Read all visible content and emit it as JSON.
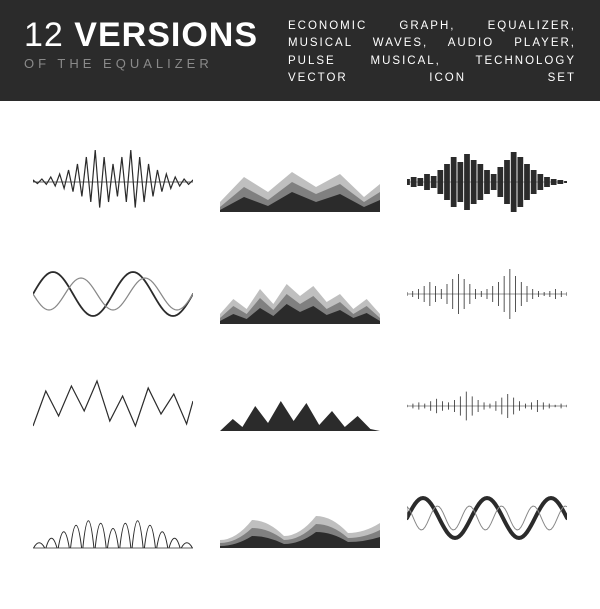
{
  "header": {
    "title_number": "12",
    "title_word": "VERSIONS",
    "subtitle": "OF THE EQUALIZER",
    "description": "ECONOMIC GRAPH, EQUALIZER, MUSICAL WAVES, AUDIO PLAYER, PULSE MUSICAL, TECHNOLOGY VECTOR ICON SET"
  },
  "colors": {
    "bg_header": "#2b2b2b",
    "text_light": "#ffffff",
    "text_muted": "#8a8a8a",
    "stroke_dark": "#2b2b2b",
    "fill_dark": "#2b2b2b",
    "fill_mid": "#808080",
    "fill_light": "#bfbfbf",
    "stroke_mid": "#888888"
  },
  "waves": [
    {
      "id": "w1",
      "type": "symmetric-spikes-outline",
      "stroke": "#2b2b2b",
      "stroke_width": 1.2,
      "amplitudes": [
        2,
        3,
        5,
        8,
        12,
        18,
        25,
        32,
        25,
        18,
        25,
        32,
        25,
        18,
        12,
        8,
        5,
        3,
        2
      ]
    },
    {
      "id": "w2",
      "type": "stacked-area",
      "layers": [
        {
          "fill": "#bfbfbf",
          "points": [
            0,
            10,
            15,
            35,
            30,
            20,
            45,
            40,
            60,
            25,
            75,
            38,
            90,
            15,
            100,
            28
          ]
        },
        {
          "fill": "#808080",
          "points": [
            0,
            5,
            15,
            25,
            30,
            12,
            45,
            30,
            60,
            18,
            75,
            28,
            90,
            10,
            100,
            20
          ]
        },
        {
          "fill": "#2b2b2b",
          "points": [
            0,
            2,
            15,
            15,
            30,
            6,
            45,
            20,
            60,
            10,
            75,
            18,
            90,
            5,
            100,
            12
          ]
        }
      ]
    },
    {
      "id": "w3",
      "type": "dense-waveform",
      "fill": "#2b2b2b",
      "amplitudes": [
        3,
        5,
        4,
        8,
        6,
        12,
        18,
        25,
        20,
        28,
        22,
        18,
        12,
        8,
        15,
        22,
        30,
        25,
        18,
        12,
        8,
        5,
        3,
        2,
        1
      ]
    },
    {
      "id": "w4",
      "type": "dual-sine",
      "lines": [
        {
          "stroke": "#2b2b2b",
          "stroke_width": 1.8,
          "amp": 22,
          "freq": 2,
          "phase": 0
        },
        {
          "stroke": "#888888",
          "stroke_width": 1.2,
          "amp": 16,
          "freq": 2.5,
          "phase": 0.5
        }
      ]
    },
    {
      "id": "w5",
      "type": "layered-jagged-area",
      "layers": [
        {
          "fill": "#bfbfbf",
          "heights": [
            10,
            25,
            15,
            35,
            20,
            40,
            28,
            38,
            22,
            30,
            15,
            25,
            10
          ]
        },
        {
          "fill": "#808080",
          "heights": [
            6,
            18,
            10,
            26,
            14,
            30,
            20,
            28,
            15,
            22,
            10,
            18,
            6
          ]
        },
        {
          "fill": "#2b2b2b",
          "heights": [
            3,
            10,
            5,
            16,
            8,
            20,
            12,
            18,
            9,
            14,
            6,
            11,
            3
          ]
        }
      ]
    },
    {
      "id": "w6",
      "type": "thin-waveform",
      "stroke": "#2b2b2b",
      "amplitudes": [
        2,
        3,
        5,
        8,
        12,
        8,
        5,
        10,
        15,
        20,
        15,
        10,
        5,
        3,
        5,
        8,
        12,
        18,
        25,
        18,
        12,
        8,
        5,
        3,
        2,
        3,
        5,
        3,
        2
      ]
    },
    {
      "id": "w7",
      "type": "jagged-line",
      "stroke": "#2b2b2b",
      "stroke_width": 1.2,
      "points": [
        0,
        20,
        8,
        -15,
        16,
        10,
        24,
        -20,
        32,
        5,
        40,
        -25,
        48,
        15,
        56,
        -10,
        64,
        20,
        72,
        -18,
        80,
        8,
        88,
        -12,
        96,
        18,
        100,
        -5
      ]
    },
    {
      "id": "w8",
      "type": "mountain-fill",
      "fill": "#2b2b2b",
      "points": [
        0,
        0,
        8,
        12,
        14,
        4,
        22,
        25,
        30,
        8,
        38,
        30,
        46,
        10,
        54,
        28,
        62,
        6,
        70,
        20,
        78,
        4,
        86,
        15,
        94,
        2,
        100,
        0
      ]
    },
    {
      "id": "w9",
      "type": "micro-waveform",
      "stroke": "#2b2b2b",
      "amplitudes": [
        1,
        2,
        3,
        2,
        4,
        6,
        4,
        3,
        5,
        8,
        12,
        8,
        5,
        3,
        2,
        4,
        7,
        10,
        7,
        4,
        2,
        3,
        5,
        3,
        2,
        1,
        2,
        1
      ]
    },
    {
      "id": "w10",
      "type": "leaf-spikes",
      "stroke": "#2b2b2b",
      "stroke_width": 1,
      "heights": [
        8,
        15,
        25,
        35,
        42,
        38,
        30,
        38,
        42,
        35,
        25,
        15,
        8
      ]
    },
    {
      "id": "w11",
      "type": "smooth-area-layers",
      "layers": [
        {
          "fill": "#bfbfbf",
          "points": [
            0,
            8,
            20,
            28,
            40,
            12,
            60,
            32,
            80,
            15,
            100,
            25
          ]
        },
        {
          "fill": "#808080",
          "points": [
            0,
            5,
            20,
            20,
            40,
            8,
            60,
            24,
            80,
            10,
            100,
            18
          ]
        },
        {
          "fill": "#2b2b2b",
          "points": [
            0,
            2,
            20,
            12,
            40,
            4,
            60,
            16,
            80,
            6,
            100,
            11
          ]
        }
      ]
    },
    {
      "id": "w12",
      "type": "thick-thin-sine",
      "lines": [
        {
          "stroke": "#2b2b2b",
          "stroke_width": 4,
          "amp": 20,
          "freq": 2.5,
          "phase": 0
        },
        {
          "stroke": "#888888",
          "stroke_width": 1,
          "amp": 12,
          "freq": 5,
          "phase": 0.3
        }
      ]
    }
  ]
}
